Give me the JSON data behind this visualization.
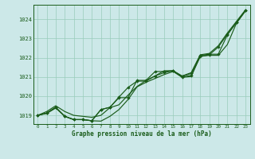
{
  "xlabel": "Graphe pression niveau de la mer (hPa)",
  "bg_color": "#cce8e8",
  "grid_color": "#99ccbb",
  "line_color": "#1a5c1a",
  "text_color": "#1a5c1a",
  "hours": [
    0,
    1,
    2,
    3,
    4,
    5,
    6,
    7,
    8,
    9,
    10,
    11,
    12,
    13,
    14,
    15,
    16,
    17,
    18,
    19,
    20,
    21,
    22,
    23
  ],
  "line_upper": [
    1019.0,
    1019.2,
    1019.5,
    1019.2,
    1019.0,
    1018.95,
    1018.9,
    1019.0,
    1019.4,
    1019.55,
    1020.05,
    1020.5,
    1020.82,
    1021.05,
    1021.32,
    1021.32,
    1021.05,
    1021.22,
    1022.15,
    1022.22,
    1022.62,
    1023.28,
    1023.88,
    1024.48
  ],
  "line_lower": [
    1019.0,
    1019.1,
    1019.38,
    1018.95,
    1018.78,
    1018.78,
    1018.72,
    1018.7,
    1018.95,
    1019.3,
    1019.82,
    1020.48,
    1020.72,
    1020.92,
    1021.12,
    1021.28,
    1020.98,
    1021.02,
    1022.08,
    1022.12,
    1022.12,
    1022.68,
    1023.78,
    1024.42
  ],
  "line_marked1": [
    1019.0,
    1019.12,
    1019.42,
    1018.95,
    1018.78,
    1018.78,
    1018.72,
    1019.3,
    1019.42,
    1019.92,
    1019.92,
    1020.82,
    1020.82,
    1021.28,
    1021.28,
    1021.32,
    1021.02,
    1021.18,
    1022.12,
    1022.18,
    1022.18,
    1023.18,
    1023.82,
    1024.45
  ],
  "line_marked2": [
    1019.0,
    1019.12,
    1019.42,
    1018.95,
    1018.78,
    1018.78,
    1018.72,
    1019.3,
    1019.42,
    1019.95,
    1020.45,
    1020.78,
    1020.78,
    1021.05,
    1021.22,
    1021.32,
    1020.98,
    1021.08,
    1022.05,
    1022.15,
    1022.55,
    1023.22,
    1023.82,
    1024.45
  ],
  "ylim": [
    1018.55,
    1024.75
  ],
  "yticks": [
    1019,
    1020,
    1021,
    1022,
    1023,
    1024
  ],
  "xlim": [
    -0.5,
    23.5
  ]
}
